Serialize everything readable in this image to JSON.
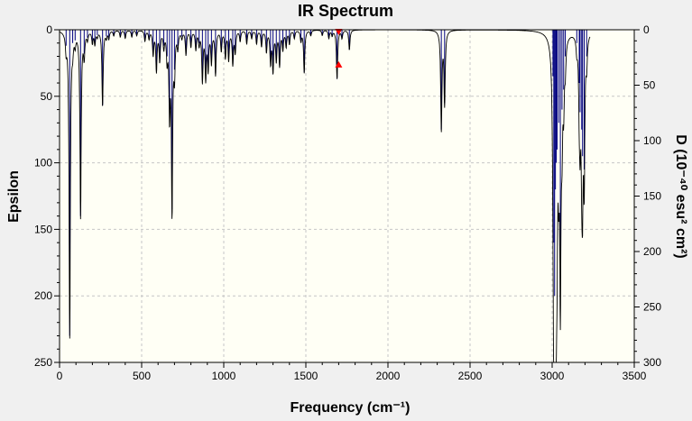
{
  "chart_data": {
    "type": "line",
    "title": "IR Spectrum",
    "xlabel": "Frequency (cm⁻¹)",
    "ylabel": "Epsilon",
    "y2label": "D (10⁻⁴⁰ esu² cm²)",
    "xlim": [
      0,
      3500
    ],
    "ylim": [
      0,
      250
    ],
    "y2lim": [
      0,
      300
    ],
    "y_axis_inverted": true,
    "x_ticks": [
      0,
      500,
      1000,
      1500,
      2000,
      2500,
      3000,
      3500
    ],
    "y_ticks": [
      0,
      50,
      100,
      150,
      200,
      250
    ],
    "y2_ticks": [
      0,
      50,
      100,
      150,
      200,
      250,
      300
    ],
    "grid": true,
    "series": [
      {
        "type": "stick",
        "color": "#00007f",
        "x": [
          40,
          62,
          80,
          95,
          128,
          150,
          170,
          200,
          215,
          230,
          262,
          285,
          300,
          330,
          370,
          400,
          440,
          470,
          520,
          545,
          570,
          590,
          610,
          635,
          655,
          670,
          685,
          700,
          720,
          745,
          770,
          800,
          830,
          850,
          870,
          890,
          905,
          925,
          950,
          985,
          1010,
          1030,
          1055,
          1070,
          1100,
          1140,
          1170,
          1200,
          1230,
          1260,
          1285,
          1300,
          1320,
          1340,
          1360,
          1380,
          1400,
          1430,
          1470,
          1490,
          1530,
          1600,
          1640,
          1660,
          1690,
          1720,
          1765,
          2325,
          2345,
          3005,
          3010,
          3015,
          3020,
          3025,
          3030,
          3040,
          3050,
          3060,
          3070,
          3080,
          3150,
          3165,
          3170,
          3180,
          3185,
          3195,
          3210
        ],
        "y": [
          12,
          230,
          10,
          8,
          140,
          18,
          6,
          9,
          10,
          4,
          57,
          5,
          6,
          4,
          5,
          6,
          5,
          4,
          8,
          6,
          18,
          30,
          22,
          12,
          20,
          60,
          135,
          30,
          12,
          5,
          18,
          12,
          14,
          10,
          38,
          35,
          28,
          24,
          33,
          15,
          20,
          22,
          25,
          16,
          8,
          10,
          6,
          10,
          12,
          16,
          24,
          30,
          22,
          26,
          14,
          12,
          10,
          6,
          8,
          32,
          4,
          4,
          6,
          4,
          37,
          6,
          15,
          75,
          55,
          35,
          160,
          200,
          120,
          100,
          90,
          70,
          185,
          60,
          45,
          20,
          10,
          40,
          62,
          75,
          95,
          105,
          20
        ]
      }
    ],
    "markers": [
      {
        "x": 1700,
        "y": 0,
        "shape": "triangle-down",
        "color": "#ff0000"
      },
      {
        "x": 1700,
        "y": 25,
        "shape": "triangle-up",
        "color": "#ff0000"
      }
    ],
    "colors": {
      "plot_background": "#fffff5",
      "page_background": "#f0f0f0",
      "grid": "#c6c6c6",
      "spectrum_line": "#000000",
      "sticks": "#00007f",
      "marker": "#ff0000"
    }
  }
}
